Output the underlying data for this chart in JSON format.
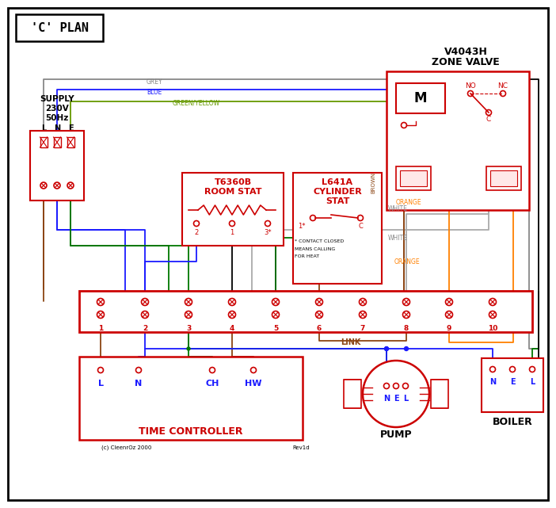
{
  "title": "'C' PLAN",
  "bg_color": "#ffffff",
  "border_color": "#000000",
  "red": "#cc0000",
  "blue": "#1a1aff",
  "green": "#007700",
  "black": "#000000",
  "grey": "#888888",
  "brown": "#8B4513",
  "orange": "#FF8000",
  "white_wire": "#aaaaaa",
  "green_yellow": "#669900",
  "zone_valve_title": [
    "V4043H",
    "ZONE VALVE"
  ],
  "room_stat_title": [
    "T6360B",
    "ROOM STAT"
  ],
  "cylinder_stat_title": [
    "L641A",
    "CYLINDER",
    "STAT"
  ],
  "terminal_strip_numbers": [
    "1",
    "2",
    "3",
    "4",
    "5",
    "6",
    "7",
    "8",
    "9",
    "10"
  ],
  "time_controller_labels": [
    "L",
    "N",
    "CH",
    "HW"
  ],
  "time_controller_title": "TIME CONTROLLER",
  "pump_label": "PUMP",
  "pump_nel": [
    "N",
    "E",
    "L"
  ],
  "boiler_label": "BOILER",
  "boiler_nel": [
    "N",
    "E",
    "L"
  ],
  "link_label": "LINK",
  "copyright": "(c) CleenrOz 2000",
  "rev": "Rev1d"
}
